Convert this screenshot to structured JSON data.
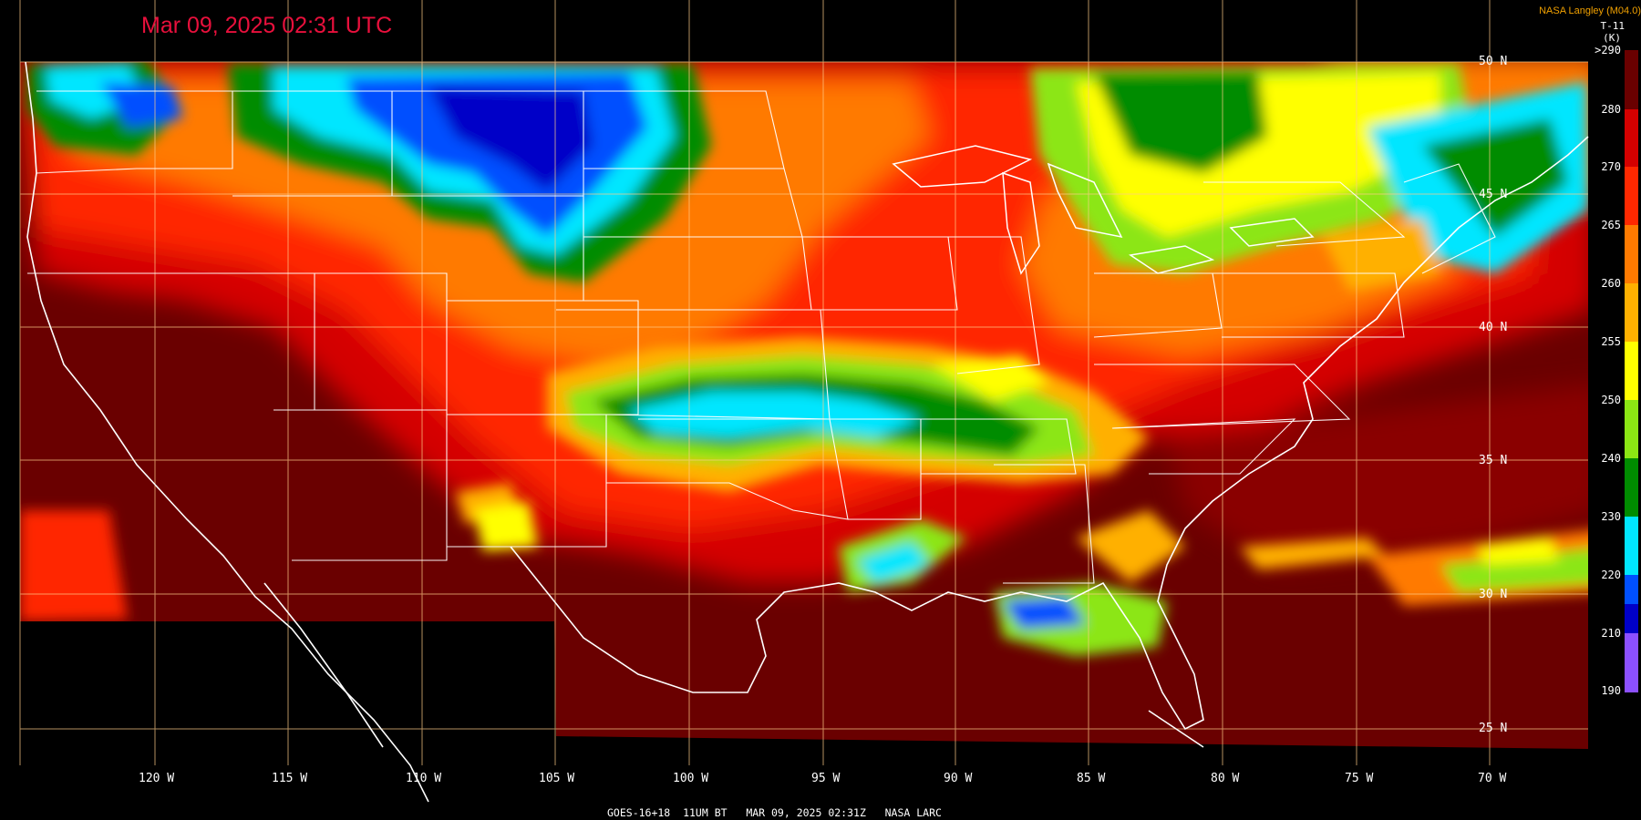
{
  "title": "Mar 09, 2025 02:31 UTC",
  "credit": "NASA Langley (M04.0)",
  "band": "T-11",
  "unit": "(K)",
  "footer": "GOES-16+18  11UM BT   MAR 09, 2025 02:31Z   NASA LARC",
  "colorbar": {
    "levels": [
      ">290",
      "280",
      "270",
      "265",
      "260",
      "255",
      "250",
      "240",
      "230",
      "220",
      "210",
      "190"
    ],
    "colors": [
      "#6a0000",
      "#d40000",
      "#ff2800",
      "#ff7a00",
      "#ffb000",
      "#ffff00",
      "#8ce614",
      "#008c00",
      "#00e6ff",
      "#0050ff",
      "#0000c8",
      "#8c50ff"
    ]
  },
  "latitudes": [
    "50 N",
    "45 N",
    "40 N",
    "35 N",
    "30 N",
    "25 N"
  ],
  "longitudes": [
    "120 W",
    "115 W",
    "110 W",
    "105 W",
    "100 W",
    "95 W",
    "90 W",
    "85 W",
    "80 W",
    "75 W",
    "70 W"
  ]
}
